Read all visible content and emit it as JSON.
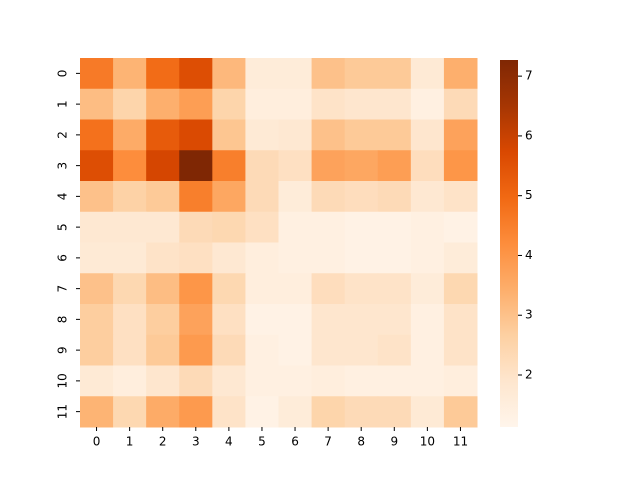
{
  "chart_data": {
    "type": "heatmap",
    "x_categories": [
      "0",
      "1",
      "2",
      "3",
      "4",
      "5",
      "6",
      "7",
      "8",
      "9",
      "10",
      "11"
    ],
    "y_categories": [
      "0",
      "1",
      "2",
      "3",
      "4",
      "5",
      "6",
      "7",
      "8",
      "9",
      "10",
      "11"
    ],
    "values": [
      [
        4.6,
        3.3,
        4.9,
        5.6,
        3.2,
        1.6,
        1.6,
        3.0,
        2.8,
        2.8,
        1.7,
        3.4
      ],
      [
        3.1,
        2.5,
        3.4,
        3.8,
        2.5,
        1.5,
        1.5,
        2.0,
        1.9,
        1.9,
        1.4,
        2.3
      ],
      [
        4.8,
        3.5,
        5.3,
        5.7,
        2.9,
        1.7,
        1.8,
        3.0,
        2.8,
        2.8,
        1.9,
        3.7
      ],
      [
        5.6,
        4.2,
        5.8,
        7.27,
        4.5,
        2.3,
        2.1,
        3.7,
        3.6,
        3.8,
        2.2,
        4.0
      ],
      [
        3.0,
        2.6,
        2.8,
        4.5,
        3.6,
        2.3,
        1.6,
        2.3,
        2.2,
        2.3,
        1.8,
        2.0
      ],
      [
        1.8,
        1.8,
        1.8,
        2.3,
        2.4,
        2.1,
        1.4,
        1.4,
        1.3,
        1.3,
        1.4,
        1.3
      ],
      [
        1.7,
        1.7,
        2.0,
        2.1,
        1.8,
        1.5,
        1.4,
        1.4,
        1.3,
        1.3,
        1.4,
        1.6
      ],
      [
        3.0,
        2.4,
        3.1,
        4.0,
        2.4,
        1.5,
        1.5,
        2.2,
        2.0,
        2.0,
        1.6,
        2.4
      ],
      [
        2.7,
        2.1,
        2.7,
        3.7,
        2.1,
        1.3,
        1.3,
        1.9,
        1.9,
        1.9,
        1.4,
        2.0
      ],
      [
        2.7,
        2.1,
        2.8,
        3.9,
        2.3,
        1.4,
        1.3,
        1.9,
        1.9,
        2.0,
        1.4,
        2.0
      ],
      [
        1.7,
        1.5,
        1.9,
        2.3,
        1.8,
        1.4,
        1.4,
        1.5,
        1.4,
        1.4,
        1.4,
        1.5
      ],
      [
        3.3,
        2.4,
        3.5,
        3.9,
        2.0,
        1.3,
        1.6,
        2.5,
        2.3,
        2.3,
        1.7,
        2.8
      ]
    ],
    "colormap": [
      "#fff5eb",
      "#fee6ce",
      "#fdd0a2",
      "#fdae6b",
      "#fd8d3c",
      "#f16913",
      "#d94801",
      "#a63603",
      "#7f2704"
    ],
    "clim": [
      1.13,
      7.27
    ],
    "cticks": [
      2,
      3,
      4,
      5,
      6,
      7
    ]
  }
}
